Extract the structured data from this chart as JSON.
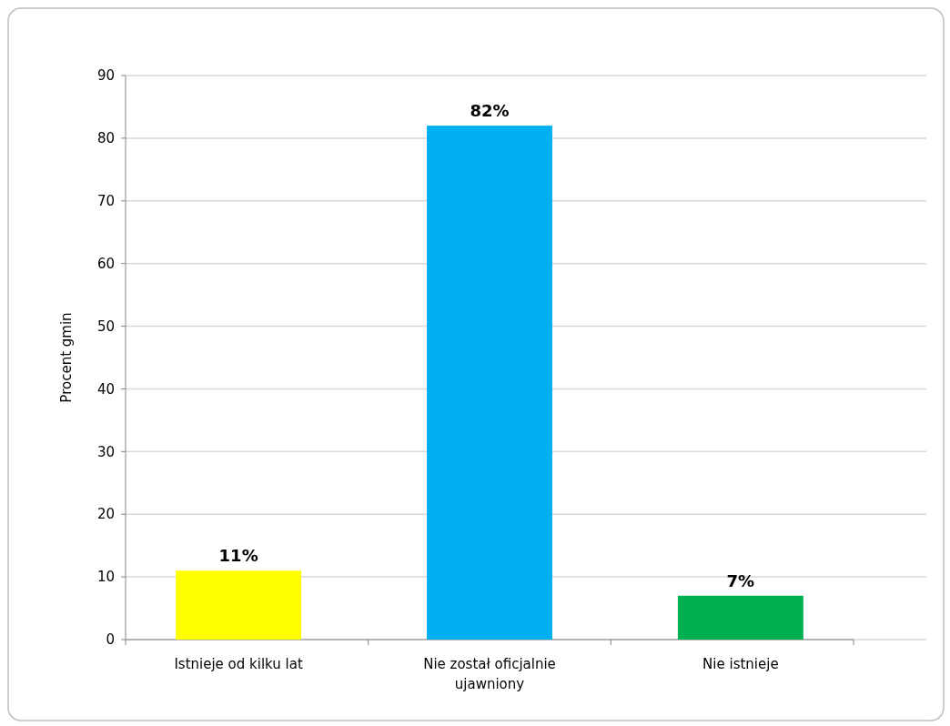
{
  "chart_data": {
    "type": "bar",
    "ylabel": "Procent gmin",
    "categories": [
      "Istnieje od kilku lat",
      "Nie został oficjalnie ujawniony",
      "Nie istnieje"
    ],
    "values": [
      11,
      82,
      7
    ],
    "colors": [
      "#ffff00",
      "#00b0f0",
      "#00b050"
    ],
    "value_labels": [
      "11%",
      "82%",
      "7%"
    ],
    "ylim": [
      0,
      90
    ],
    "yticks": [
      0,
      10,
      20,
      30,
      40,
      50,
      60,
      70,
      80,
      90
    ],
    "grid": "y"
  }
}
